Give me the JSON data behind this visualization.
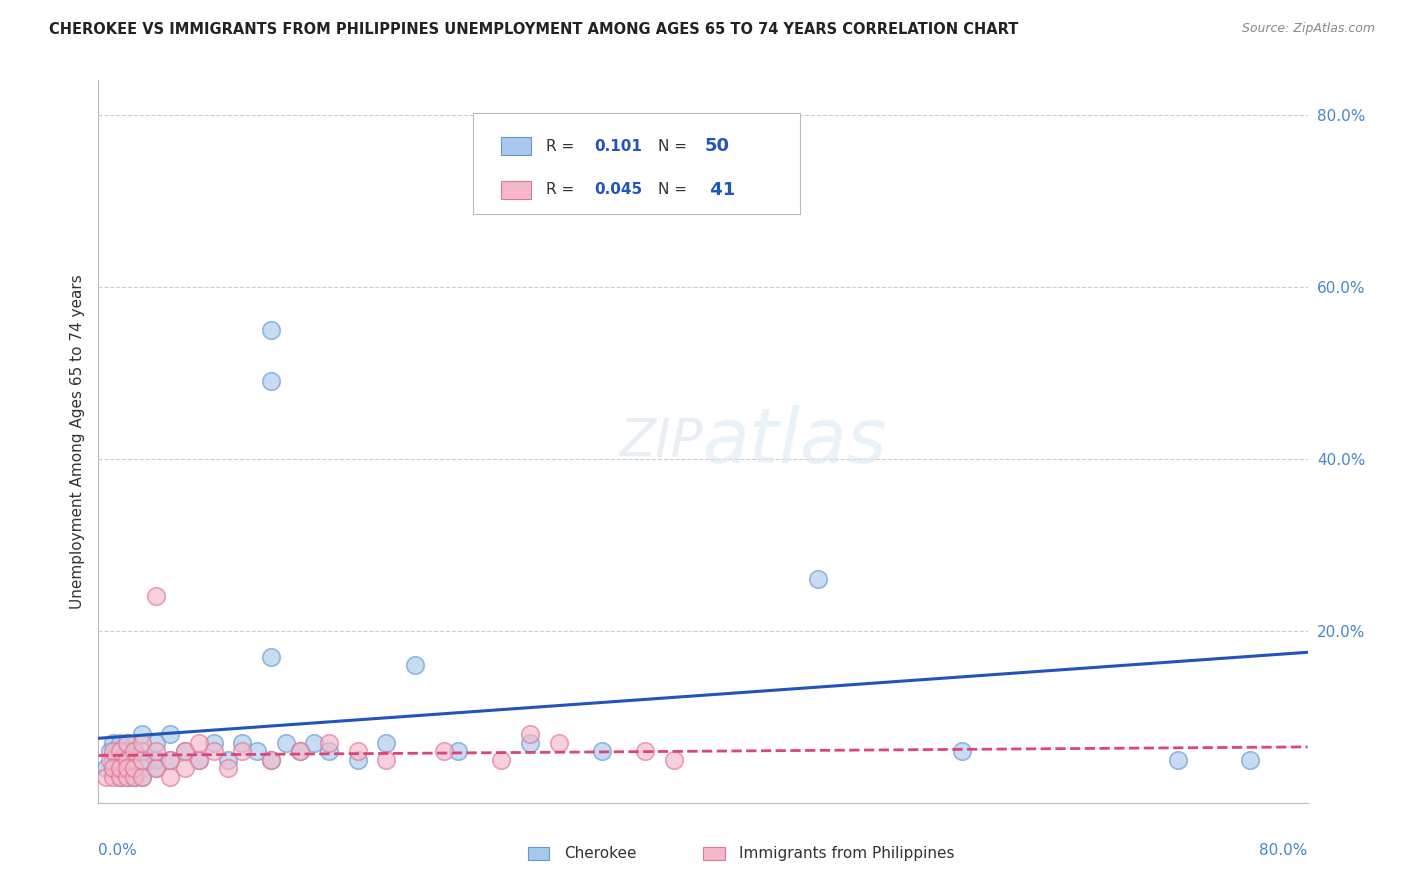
{
  "title": "CHEROKEE VS IMMIGRANTS FROM PHILIPPINES UNEMPLOYMENT AMONG AGES 65 TO 74 YEARS CORRELATION CHART",
  "source": "Source: ZipAtlas.com",
  "ylabel": "Unemployment Among Ages 65 to 74 years",
  "ylim": [
    0.0,
    0.84
  ],
  "xlim": [
    0.0,
    0.84
  ],
  "gridline_color": "#cccccc",
  "background_color": "#ffffff",
  "cherokee_fill": "#aac8ee",
  "cherokee_edge": "#6699cc",
  "philippines_fill": "#f5b8c8",
  "philippines_edge": "#dd7799",
  "cherokee_line_color": "#2255bb",
  "philippines_line_color": "#dd4477",
  "legend_r_color": "#2255bb",
  "legend_n_color": "#2255bb",
  "tick_label_color": "#4488cc",
  "cherokee_x": [
    0.005,
    0.008,
    0.01,
    0.01,
    0.01,
    0.015,
    0.015,
    0.015,
    0.015,
    0.02,
    0.02,
    0.02,
    0.02,
    0.02,
    0.025,
    0.025,
    0.025,
    0.03,
    0.03,
    0.03,
    0.03,
    0.04,
    0.04,
    0.04,
    0.05,
    0.05,
    0.06,
    0.07,
    0.08,
    0.09,
    0.1,
    0.11,
    0.12,
    0.13,
    0.14,
    0.15,
    0.16,
    0.18,
    0.2,
    0.25,
    0.3,
    0.12,
    0.12,
    0.12,
    0.5,
    0.75,
    0.8,
    0.22,
    0.35,
    0.6
  ],
  "cherokee_y": [
    0.04,
    0.06,
    0.04,
    0.07,
    0.05,
    0.03,
    0.05,
    0.07,
    0.04,
    0.03,
    0.05,
    0.07,
    0.04,
    0.06,
    0.04,
    0.06,
    0.03,
    0.04,
    0.06,
    0.03,
    0.08,
    0.05,
    0.07,
    0.04,
    0.05,
    0.08,
    0.06,
    0.05,
    0.07,
    0.05,
    0.07,
    0.06,
    0.05,
    0.07,
    0.06,
    0.07,
    0.06,
    0.05,
    0.07,
    0.06,
    0.07,
    0.55,
    0.49,
    0.17,
    0.26,
    0.05,
    0.05,
    0.16,
    0.06,
    0.06
  ],
  "philippines_x": [
    0.005,
    0.008,
    0.01,
    0.01,
    0.01,
    0.015,
    0.015,
    0.015,
    0.02,
    0.02,
    0.02,
    0.02,
    0.025,
    0.025,
    0.025,
    0.03,
    0.03,
    0.03,
    0.04,
    0.04,
    0.05,
    0.05,
    0.06,
    0.06,
    0.07,
    0.07,
    0.08,
    0.09,
    0.1,
    0.12,
    0.14,
    0.16,
    0.18,
    0.2,
    0.24,
    0.28,
    0.32,
    0.38,
    0.4,
    0.04,
    0.3
  ],
  "philippines_y": [
    0.03,
    0.05,
    0.03,
    0.06,
    0.04,
    0.03,
    0.06,
    0.04,
    0.03,
    0.05,
    0.07,
    0.04,
    0.03,
    0.06,
    0.04,
    0.03,
    0.05,
    0.07,
    0.04,
    0.06,
    0.03,
    0.05,
    0.04,
    0.06,
    0.05,
    0.07,
    0.06,
    0.04,
    0.06,
    0.05,
    0.06,
    0.07,
    0.06,
    0.05,
    0.06,
    0.05,
    0.07,
    0.06,
    0.05,
    0.24,
    0.08
  ],
  "blue_line_x": [
    0.0,
    0.84
  ],
  "blue_line_y": [
    0.075,
    0.175
  ],
  "pink_line_x": [
    0.0,
    0.84
  ],
  "pink_line_y": [
    0.055,
    0.065
  ]
}
